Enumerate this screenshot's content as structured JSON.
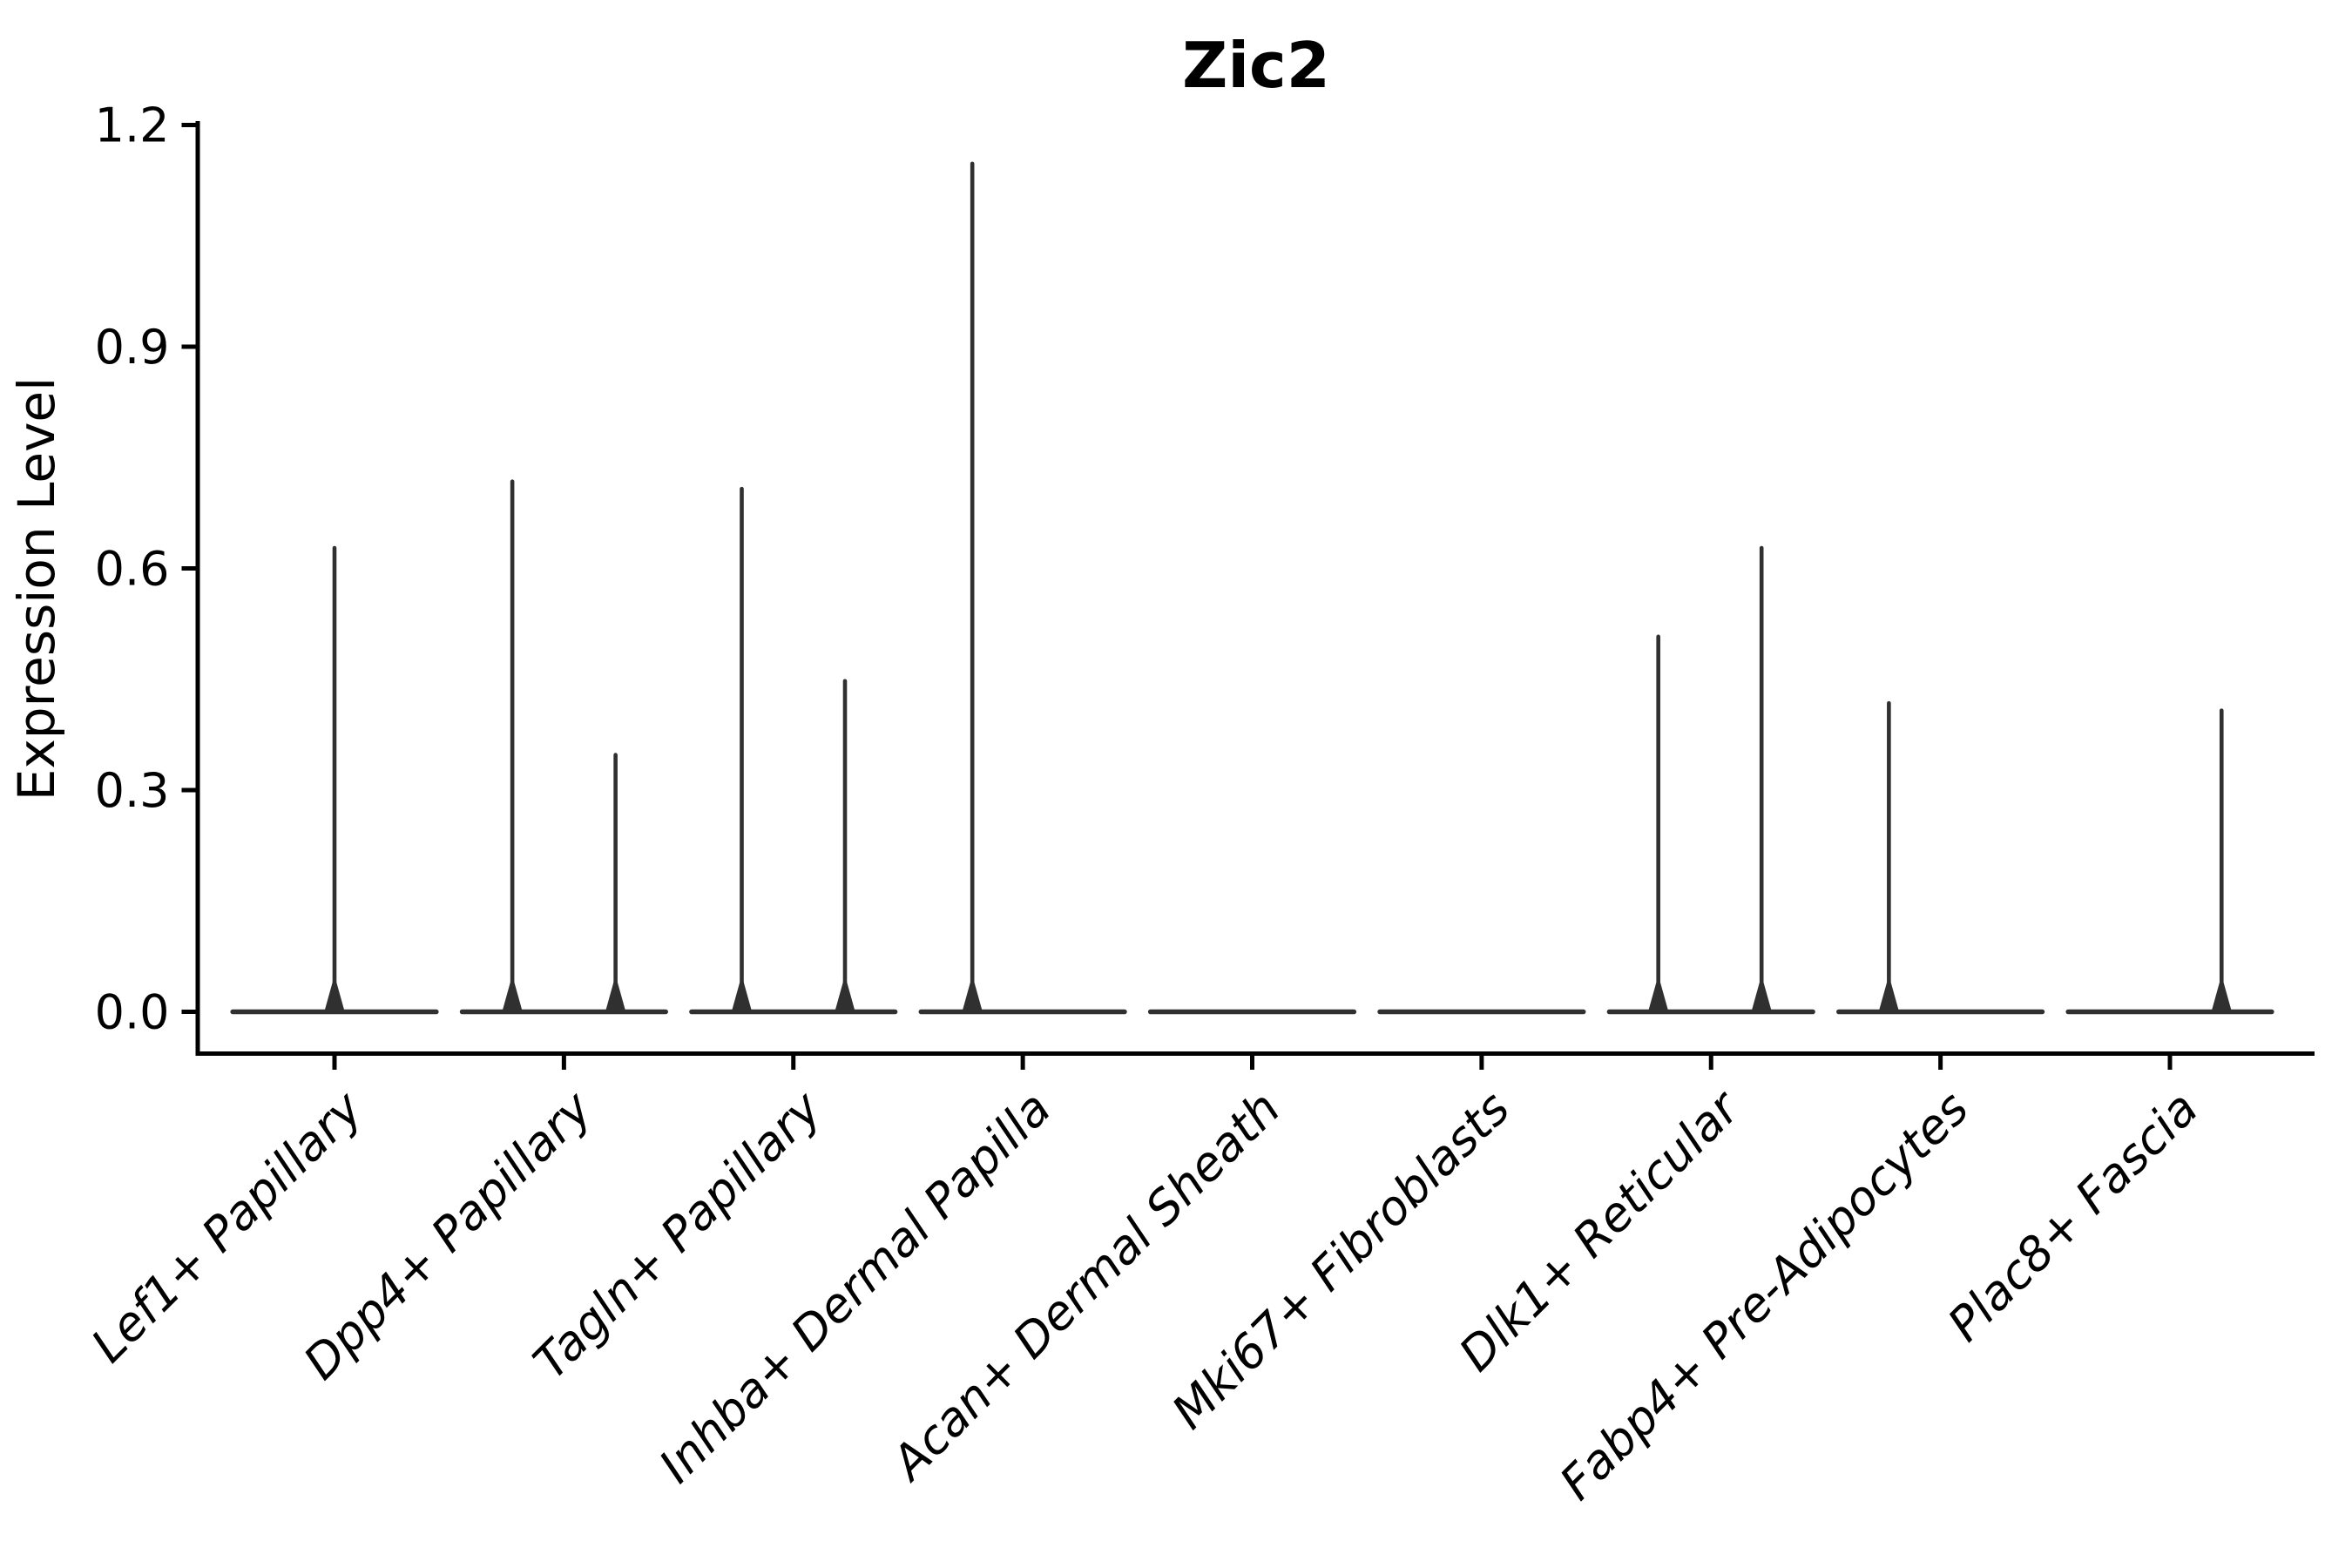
{
  "chart_data": {
    "type": "violin",
    "title": "Zic2",
    "xlabel": "",
    "ylabel": "Expression Level",
    "ylim": [
      -0.06,
      1.26
    ],
    "yticks": [
      0.0,
      0.3,
      0.6,
      0.9,
      1.2
    ],
    "ytick_labels": [
      "0.0",
      "0.3",
      "0.6",
      "0.9",
      "1.2"
    ],
    "grid": false,
    "legend": null,
    "categories": [
      "Lef1+ Papillary",
      "Dpp4+ Papillary",
      "Tagln+ Papillary",
      "Inhba+ Dermal Papilla",
      "Acan+ Dermal Sheath",
      "Mki67+ Fibroblasts",
      "Dlk1+ Reticular",
      "Fabp4+ Pre-Adipocytes",
      "Plac8+ Fascia"
    ],
    "violins": [
      {
        "category": "Lef1+ Papillary",
        "baseline_halfwidth": 0.455,
        "spikes": [
          {
            "offset": 0.0,
            "peak": 0.63
          }
        ]
      },
      {
        "category": "Dpp4+ Papillary",
        "baseline_halfwidth": 0.455,
        "spikes": [
          {
            "offset": -0.225,
            "peak": 0.72
          },
          {
            "offset": 0.225,
            "peak": 0.35
          }
        ]
      },
      {
        "category": "Tagln+ Papillary",
        "baseline_halfwidth": 0.455,
        "spikes": [
          {
            "offset": -0.225,
            "peak": 0.71
          },
          {
            "offset": 0.225,
            "peak": 0.45
          }
        ]
      },
      {
        "category": "Inhba+ Dermal Papilla",
        "baseline_halfwidth": 0.455,
        "spikes": [
          {
            "offset": -0.22,
            "peak": 1.15
          }
        ]
      },
      {
        "category": "Acan+ Dermal Sheath",
        "baseline_halfwidth": 0.455,
        "spikes": []
      },
      {
        "category": "Mki67+ Fibroblasts",
        "baseline_halfwidth": 0.455,
        "spikes": []
      },
      {
        "category": "Dlk1+ Reticular",
        "baseline_halfwidth": 0.455,
        "spikes": [
          {
            "offset": -0.23,
            "peak": 0.51
          },
          {
            "offset": 0.22,
            "peak": 0.63
          }
        ]
      },
      {
        "category": "Fabp4+ Pre-Adipocytes",
        "baseline_halfwidth": 0.455,
        "spikes": [
          {
            "offset": -0.225,
            "peak": 0.42
          }
        ]
      },
      {
        "category": "Plac8+ Fascia",
        "baseline_halfwidth": 0.455,
        "spikes": [
          {
            "offset": 0.225,
            "peak": 0.41
          }
        ]
      }
    ],
    "colors": {
      "violin": "#303030",
      "axis": "#000000",
      "background": "#ffffff"
    }
  }
}
